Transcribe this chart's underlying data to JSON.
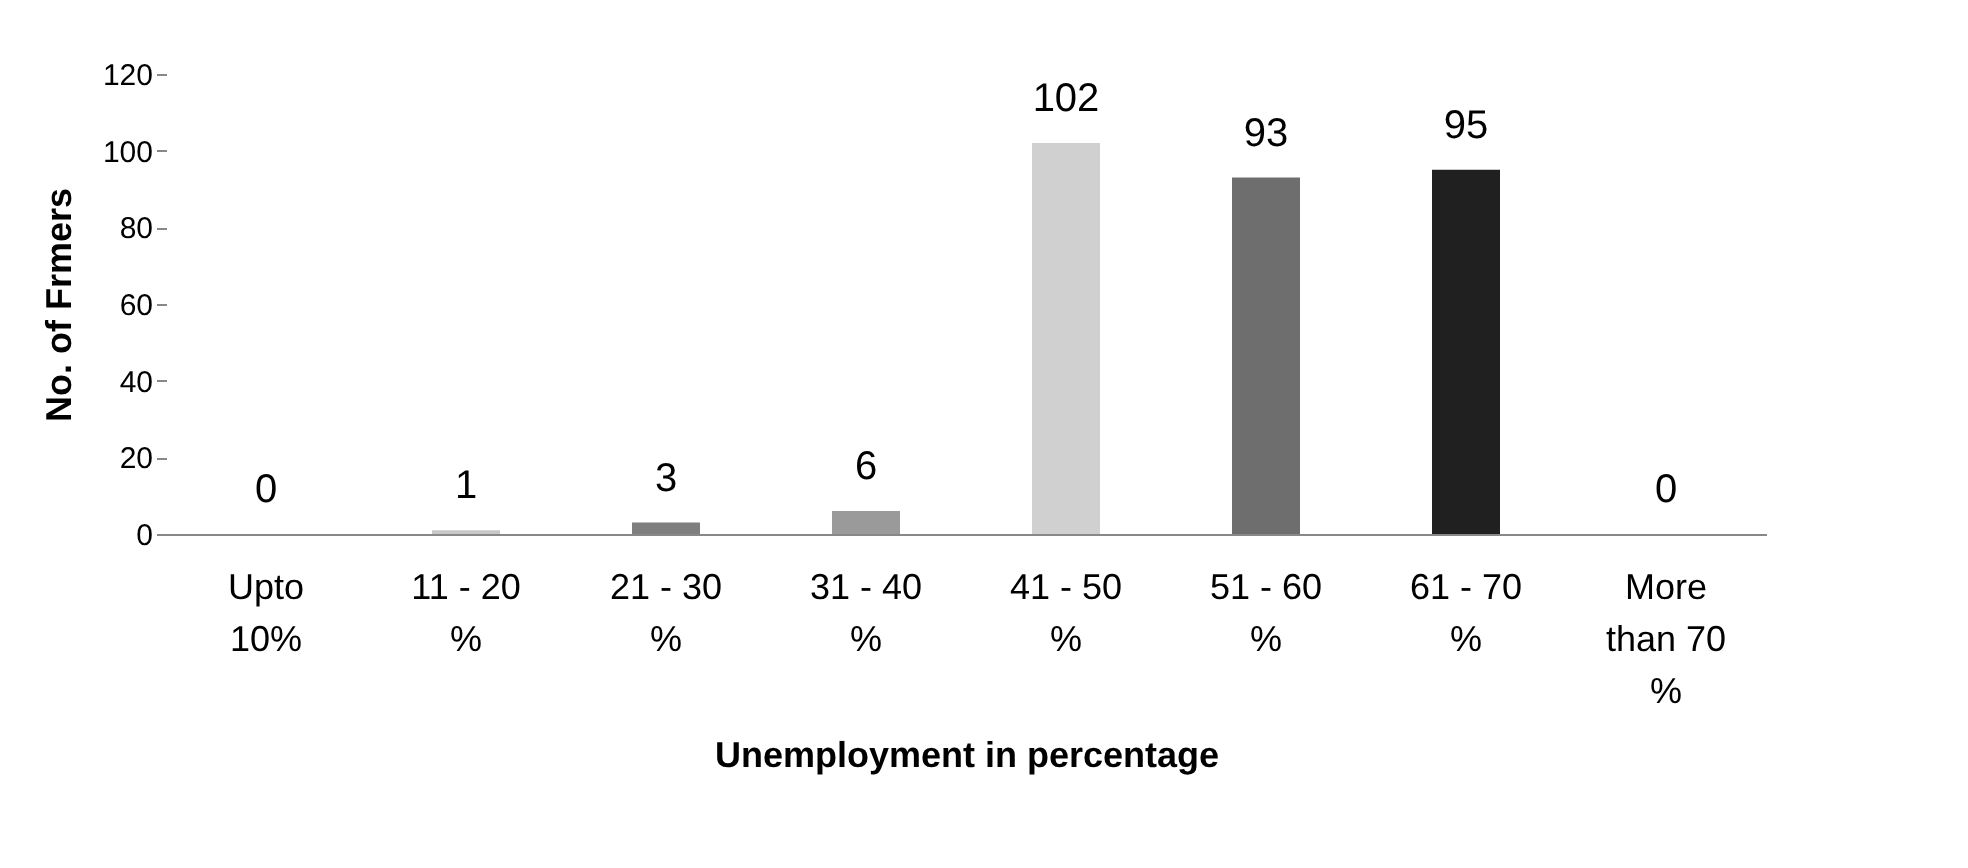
{
  "chart_data": {
    "type": "bar",
    "xlabel": "Unemployment in  percentage",
    "ylabel": "No. of Frmers",
    "categories": [
      "Upto\n10%",
      "11 -  20\n%",
      "21 - 30\n%",
      "31 - 40\n%",
      "41 - 50\n%",
      "51 - 60\n%",
      "61 - 70\n%",
      "More\nthan 70\n%"
    ],
    "values": [
      0,
      1,
      3,
      6,
      102,
      93,
      95,
      0
    ],
    "colors": [
      "#a6a6a6",
      "#c8c8c8",
      "#7f7f7f",
      "#9a9a9a",
      "#d0d0d0",
      "#6e6e6e",
      "#202020",
      "#808080"
    ],
    "ylim": [
      0,
      120
    ],
    "yticks": [
      0,
      20,
      40,
      60,
      80,
      100,
      120
    ],
    "data_labels": true,
    "grid": false
  }
}
